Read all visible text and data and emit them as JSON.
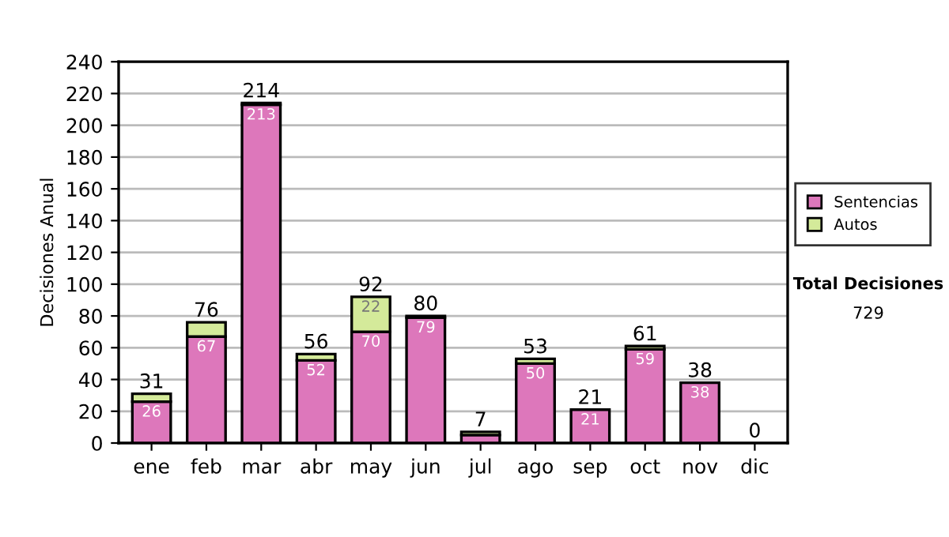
{
  "chart_data": {
    "type": "bar",
    "stacked": true,
    "ylabel": "Decisiones Anual",
    "categories": [
      "ene",
      "feb",
      "mar",
      "abr",
      "may",
      "jun",
      "jul",
      "ago",
      "sep",
      "oct",
      "nov",
      "dic"
    ],
    "series": [
      {
        "name": "Sentencias",
        "color": "#dd77bb",
        "values": [
          26,
          67,
          213,
          52,
          70,
          79,
          5,
          50,
          21,
          59,
          38,
          0
        ],
        "value_labels": [
          "26",
          "67",
          "213",
          "52",
          "70",
          "79",
          null,
          "50",
          "21",
          "59",
          "38",
          null
        ]
      },
      {
        "name": "Autos",
        "color": "#d4ea9a",
        "values": [
          5,
          9,
          1,
          4,
          22,
          1,
          2,
          3,
          0,
          2,
          0,
          0
        ],
        "value_labels": [
          null,
          null,
          null,
          null,
          "22",
          null,
          null,
          null,
          null,
          null,
          null,
          null
        ]
      }
    ],
    "totals": [
      "31",
      "76",
      "214",
      "56",
      "92",
      "80",
      "7",
      "53",
      "21",
      "61",
      "38",
      "0"
    ],
    "ylim": [
      0,
      240
    ],
    "yticks": [
      0,
      20,
      40,
      60,
      80,
      100,
      120,
      140,
      160,
      180,
      200,
      220,
      240
    ],
    "grid": "y",
    "legend": "right",
    "annotations": [
      "Total Decisiones",
      "729"
    ]
  }
}
